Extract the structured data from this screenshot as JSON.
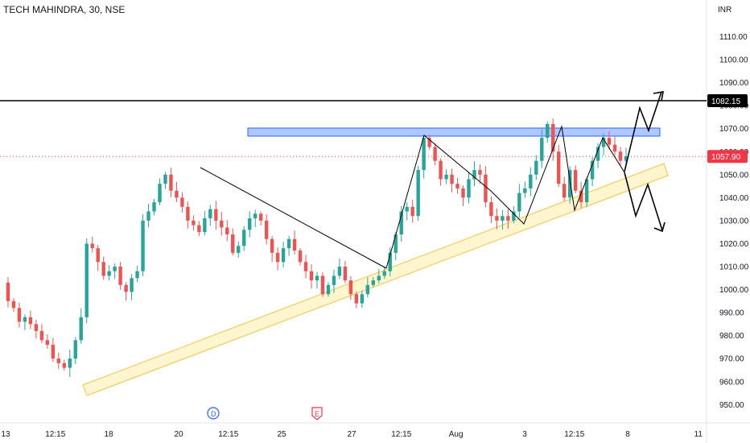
{
  "header": {
    "title": "TECH MAHINDRA, 30, NSE"
  },
  "chart_data": {
    "type": "candlestick",
    "currency": "INR",
    "ylim": [
      942,
      1118
    ],
    "y_ticks": [
      "1110.00",
      "1100.00",
      "1090.00",
      "1080.00",
      "1070.00",
      "1060.00",
      "1050.00",
      "1040.00",
      "1030.00",
      "1020.00",
      "1010.00",
      "1000.00",
      "990.00",
      "980.00",
      "970.00",
      "960.00",
      "950.00"
    ],
    "x_ticks": [
      "13",
      "12:15",
      "18",
      "20",
      "12:15",
      "25",
      "27",
      "12:15",
      "Aug",
      "3",
      "12:15",
      "8",
      "11"
    ],
    "last_price": "1057.90",
    "horizontal_line": "1082.15",
    "colors": {
      "up": "#26a69a",
      "down": "#ef5350",
      "resistance": "#2962ff",
      "channel": "#f5c242",
      "last": "#f23645"
    },
    "markers": [
      {
        "label": "D",
        "color": "#2962ff"
      },
      {
        "label": "E",
        "color": "#f23645"
      }
    ],
    "price_path": [
      1003,
      995,
      992,
      986,
      988,
      985,
      982,
      978,
      976,
      970,
      968,
      966,
      970,
      978,
      988,
      1020,
      1018,
      1012,
      1006,
      1008,
      1010,
      1002,
      999,
      1005,
      1008,
      1030,
      1034,
      1038,
      1046,
      1050,
      1043,
      1040,
      1036,
      1030,
      1028,
      1025,
      1031,
      1035,
      1030,
      1027,
      1024,
      1016,
      1019,
      1026,
      1031,
      1033,
      1030,
      1022,
      1016,
      1012,
      1018,
      1022,
      1017,
      1012,
      1008,
      1004,
      1006,
      998,
      1002,
      1006,
      1010,
      1004,
      998,
      994,
      998,
      1002,
      1004,
      1006,
      1008,
      1016,
      1024,
      1034,
      1036,
      1032,
      1052,
      1066,
      1062,
      1056,
      1048,
      1050,
      1046,
      1044,
      1040,
      1048,
      1052,
      1050,
      1038,
      1032,
      1030,
      1032,
      1030,
      1034,
      1042,
      1044,
      1050,
      1056,
      1066,
      1072,
      1060,
      1046,
      1040,
      1052,
      1043,
      1038,
      1048,
      1056,
      1062,
      1066,
      1063,
      1060,
      1056,
      1058
    ]
  }
}
